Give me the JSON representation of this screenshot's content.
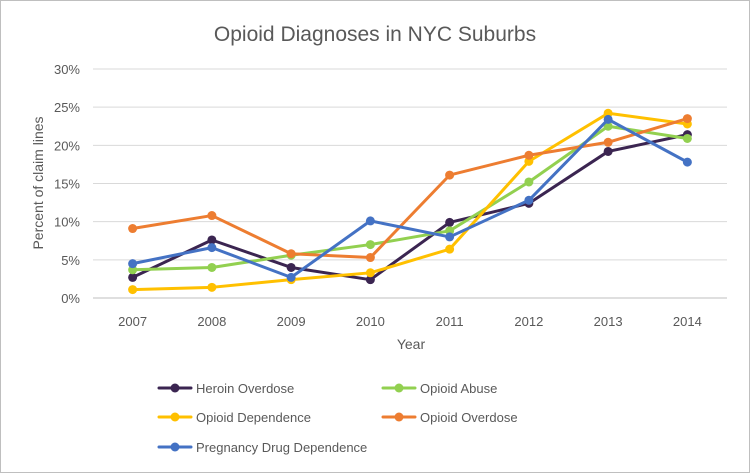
{
  "chart_data": {
    "type": "line",
    "title": "Opioid Diagnoses in NYC Suburbs",
    "xlabel": "Year",
    "ylabel": "Percent of claim lines",
    "categories": [
      "2007",
      "2008",
      "2009",
      "2010",
      "2011",
      "2012",
      "2013",
      "2014"
    ],
    "ylim": [
      0,
      30
    ],
    "yticks": [
      0,
      5,
      10,
      15,
      20,
      25,
      30
    ],
    "ytick_labels": [
      "0%",
      "5%",
      "10%",
      "15%",
      "20%",
      "25%",
      "30%"
    ],
    "grid": true,
    "legend_position": "bottom",
    "series": [
      {
        "name": "Heroin Overdose",
        "color": "#3b2551",
        "values": [
          2.7,
          7.6,
          4.0,
          2.4,
          9.9,
          12.4,
          19.2,
          21.4
        ]
      },
      {
        "name": "Opioid Abuse",
        "color": "#92d050",
        "values": [
          3.7,
          4.0,
          5.6,
          7.0,
          8.8,
          15.2,
          22.5,
          20.9
        ]
      },
      {
        "name": "Opioid Dependence",
        "color": "#ffc000",
        "values": [
          1.1,
          1.4,
          2.4,
          3.3,
          6.4,
          17.9,
          24.2,
          22.8
        ]
      },
      {
        "name": "Opioid Overdose",
        "color": "#ed7d31",
        "values": [
          9.1,
          10.8,
          5.8,
          5.3,
          16.1,
          18.7,
          20.4,
          23.5
        ]
      },
      {
        "name": "Pregnancy Drug Dependence",
        "color": "#4472c4",
        "values": [
          4.5,
          6.6,
          2.7,
          10.1,
          8.0,
          12.8,
          23.4,
          17.8
        ]
      }
    ]
  }
}
